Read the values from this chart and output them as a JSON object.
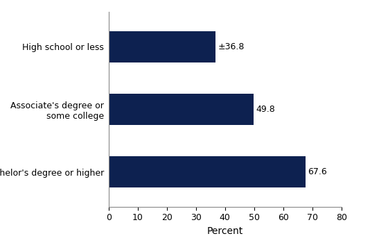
{
  "categories": [
    "Bachelor's degree or higher",
    "Associate's degree or\nsome college",
    "High school or less"
  ],
  "values": [
    67.6,
    49.8,
    36.8
  ],
  "labels": [
    "67.6",
    "49.8",
    "±36.8"
  ],
  "bar_color": "#0d2150",
  "xlabel": "Percent",
  "xlim": [
    0,
    80
  ],
  "xticks": [
    0,
    10,
    20,
    30,
    40,
    50,
    60,
    70,
    80
  ],
  "bar_height": 0.5,
  "label_fontsize": 9,
  "tick_fontsize": 9,
  "xlabel_fontsize": 10,
  "figsize": [
    5.6,
    3.5
  ],
  "dpi": 100
}
